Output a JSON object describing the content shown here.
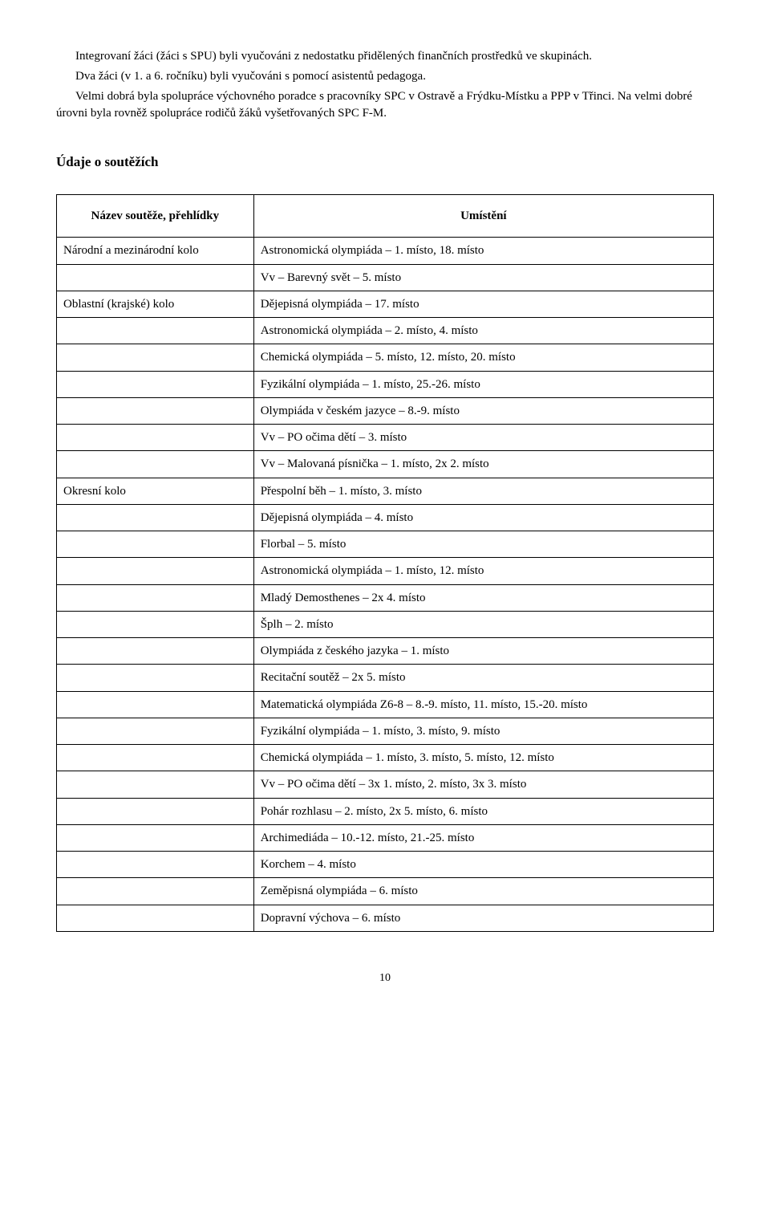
{
  "intro": {
    "p1": "Integrovaní žáci (žáci s SPU) byli vyučováni z nedostatku přidělených finančních prostředků ve skupinách.",
    "p2": "Dva žáci (v 1. a 6. ročníku) byli vyučováni s pomocí asistentů pedagoga.",
    "p3": "Velmi dobrá byla spolupráce výchovného poradce s pracovníky SPC v Ostravě a Frýdku-Místku a PPP v Třinci. Na velmi dobré úrovni byla rovněž spolupráce rodičů žáků vyšetřovaných SPC F-M."
  },
  "section_heading": "Údaje o soutěžích",
  "table": {
    "header_left": "Název soutěže, přehlídky",
    "header_right": "Umístění",
    "labels": {
      "national": "Národní a mezinárodní kolo",
      "regional": "Oblastní (krajské) kolo",
      "district": "Okresní kolo"
    },
    "results": {
      "national_1": "Astronomická olympiáda – 1. místo, 18. místo",
      "national_2": "Vv – Barevný svět – 5. místo",
      "regional_1": "Dějepisná olympiáda – 17. místo",
      "regional_2": "Astronomická olympiáda – 2. místo, 4. místo",
      "regional_3": "Chemická olympiáda – 5. místo, 12. místo, 20. místo",
      "regional_4": "Fyzikální olympiáda – 1. místo, 25.-26. místo",
      "regional_5": "Olympiáda v českém jazyce – 8.-9. místo",
      "regional_6": "Vv – PO očima dětí – 3. místo",
      "regional_7": "Vv – Malovaná písnička – 1. místo, 2x 2. místo",
      "district_1": "Přespolní běh – 1. místo, 3. místo",
      "district_2": "Dějepisná olympiáda – 4. místo",
      "district_3": "Florbal – 5. místo",
      "district_4": "Astronomická olympiáda – 1. místo, 12. místo",
      "district_5": "Mladý Demosthenes – 2x 4. místo",
      "district_6": "Šplh – 2. místo",
      "district_7": "Olympiáda z českého jazyka – 1. místo",
      "district_8": "Recitační soutěž – 2x 5. místo",
      "district_9": "Matematická olympiáda Z6-8 – 8.-9. místo, 11. místo, 15.-20. místo",
      "district_10": "Fyzikální olympiáda – 1. místo, 3. místo, 9. místo",
      "district_11": "Chemická olympiáda – 1. místo, 3. místo, 5. místo, 12. místo",
      "district_12": "Vv – PO očima dětí – 3x 1. místo, 2. místo, 3x 3. místo",
      "district_13": "Pohár rozhlasu – 2. místo, 2x 5. místo, 6. místo",
      "district_14": "Archimediáda – 10.-12. místo, 21.-25. místo",
      "district_15": "Korchem – 4. místo",
      "district_16": "Zeměpisná olympiáda – 6. místo",
      "district_17": "Dopravní výchova – 6. místo"
    }
  },
  "page_number": "10"
}
